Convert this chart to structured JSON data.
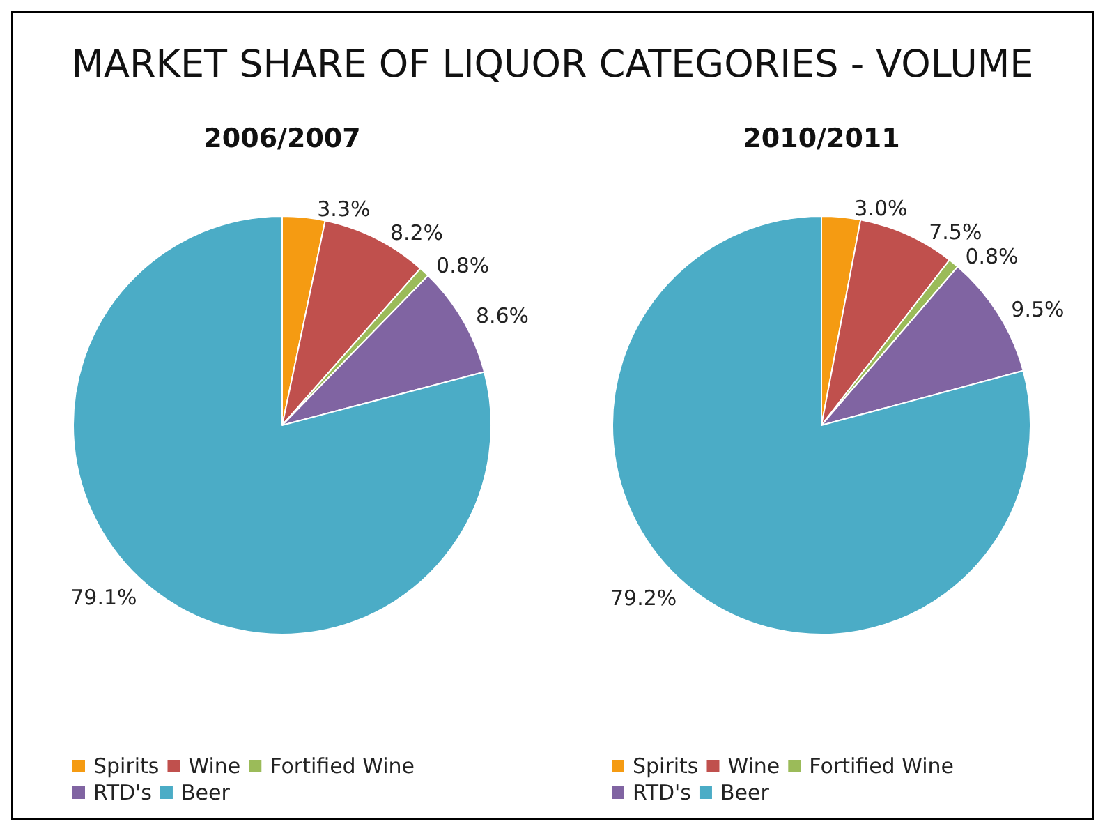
{
  "chart_data": [
    {
      "type": "pie",
      "title": "MARKET SHARE OF LIQUOR CATEGORIES - VOLUME",
      "subtitle": "2006/2007",
      "categories": [
        "Spirits",
        "Wine",
        "Fortified Wine",
        "RTD's",
        "Beer"
      ],
      "values": [
        3.3,
        8.2,
        0.8,
        8.6,
        79.1
      ],
      "value_labels": [
        "3.3%",
        "8.2%",
        "0.8%",
        "8.6%",
        "79.1%"
      ],
      "colors": [
        "#f59b12",
        "#c0504d",
        "#9bbb59",
        "#8064a2",
        "#4bacc6"
      ],
      "legend": "bottom"
    },
    {
      "type": "pie",
      "subtitle": "2010/2011",
      "categories": [
        "Spirits",
        "Wine",
        "Fortified Wine",
        "RTD's",
        "Beer"
      ],
      "values": [
        3.0,
        7.5,
        0.8,
        9.5,
        79.2
      ],
      "value_labels": [
        "3.0%",
        "7.5%",
        "0.8%",
        "9.5%",
        "79.2%"
      ],
      "colors": [
        "#f59b12",
        "#c0504d",
        "#9bbb59",
        "#8064a2",
        "#4bacc6"
      ],
      "legend": "bottom"
    }
  ]
}
